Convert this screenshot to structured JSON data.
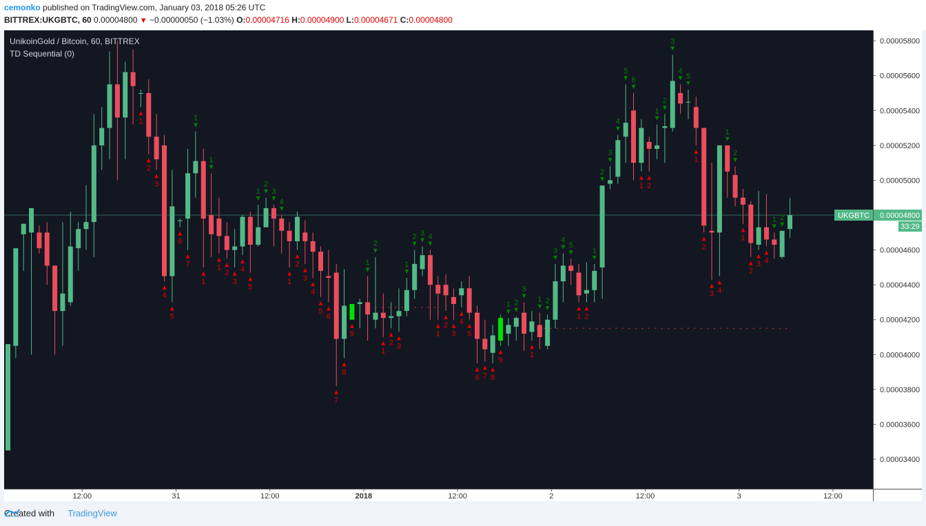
{
  "header": {
    "user": "cemonko",
    "published_text": "published on TradingView.com, January 03, 2018 05:26 UTC",
    "symbol_line": "BITTREX:UKGBTC, 60",
    "last_price": "0.00004800",
    "change": "−0.00000050 (−1.03%)",
    "o_label": "O:",
    "o_value": "0.00004716",
    "h_label": "H:",
    "h_value": "0.00004900",
    "l_label": "L:",
    "l_value": "0.00004671",
    "c_label": "C:",
    "c_value": "0.00004800"
  },
  "footer": {
    "created_with": "Created with",
    "brand": "TradingView"
  },
  "colors": {
    "background": "#131722",
    "up": "#53b987",
    "down": "#eb4d5c",
    "green_label": "#008000",
    "red_label": "#e00000",
    "highlight_up": "#00e000"
  },
  "chart_data": {
    "type": "candlestick",
    "title": "UnikoinGold / Bitcoin, 60, BITTREX",
    "indicator": "TD Sequential (0)",
    "symbol_tag": "UKGBTC",
    "price_tag": "0.00004800",
    "countdown_tag": "33:29",
    "ylim": [
      3.23e-05,
      5.86e-05
    ],
    "y_ticks": [
      "0.00005800",
      "0.00005600",
      "0.00005400",
      "0.00005200",
      "0.00005000",
      "0.00004800",
      "0.00004600",
      "0.00004400",
      "0.00004200",
      "0.00004000",
      "0.00003800",
      "0.00003600",
      "0.00003400"
    ],
    "x_ticks": [
      {
        "label": "12:00",
        "idx": 9.5
      },
      {
        "label": "31",
        "idx": 21.5
      },
      {
        "label": "12:00",
        "idx": 33.5
      },
      {
        "label": "2018",
        "idx": 45.5
      },
      {
        "label": "12:00",
        "idx": 57.5
      },
      {
        "label": "2",
        "idx": 69.5
      },
      {
        "label": "12:00",
        "idx": 81.5
      },
      {
        "label": "3",
        "idx": 93.5
      },
      {
        "label": "12:00",
        "idx": 105.5
      }
    ],
    "candles": [
      [
        3.45,
        4.06,
        4.06,
        3.45
      ],
      [
        4.05,
        4.61,
        4.61,
        3.98
      ],
      [
        4.69,
        4.75,
        4.75,
        4.48
      ],
      [
        4.7,
        4.84,
        4.84,
        4.0
      ],
      [
        4.7,
        4.61,
        4.74,
        4.58
      ],
      [
        4.7,
        4.51,
        4.76,
        4.4
      ],
      [
        4.51,
        4.25,
        4.51,
        4.0
      ],
      [
        4.25,
        4.35,
        4.76,
        4.05
      ],
      [
        4.3,
        4.62,
        4.82,
        4.28
      ],
      [
        4.61,
        4.72,
        4.76,
        4.48
      ],
      [
        4.72,
        4.76,
        4.97,
        4.6
      ],
      [
        4.76,
        5.2,
        5.38,
        4.56
      ],
      [
        5.2,
        5.3,
        5.42,
        5.06
      ],
      [
        5.3,
        5.55,
        5.74,
        5.12
      ],
      [
        5.55,
        5.36,
        5.8,
        5.0
      ],
      [
        5.36,
        5.62,
        5.68,
        5.12
      ],
      [
        5.62,
        5.54,
        5.75,
        5.32
      ],
      [
        5.5,
        5.5,
        5.52,
        5.42
      ],
      [
        5.5,
        5.25,
        5.58,
        5.15
      ],
      [
        5.25,
        5.12,
        5.38,
        5.06
      ],
      [
        5.2,
        4.45,
        5.26,
        4.42
      ],
      [
        4.45,
        4.85,
        5.06,
        4.3
      ],
      [
        4.77,
        4.77,
        4.78,
        4.73
      ],
      [
        4.78,
        5.04,
        5.18,
        4.6
      ],
      [
        5.04,
        5.11,
        5.28,
        4.9
      ],
      [
        5.11,
        4.78,
        5.18,
        4.5
      ],
      [
        4.8,
        4.69,
        5.04,
        4.56
      ],
      [
        4.78,
        4.68,
        4.9,
        4.58
      ],
      [
        4.68,
        4.6,
        4.76,
        4.55
      ],
      [
        4.6,
        4.62,
        4.72,
        4.5
      ],
      [
        4.62,
        4.79,
        4.8,
        4.57
      ],
      [
        4.79,
        4.63,
        4.82,
        4.47
      ],
      [
        4.63,
        4.73,
        4.86,
        4.62
      ],
      [
        4.73,
        4.84,
        4.9,
        4.74
      ],
      [
        4.84,
        4.78,
        4.86,
        4.62
      ],
      [
        4.78,
        4.71,
        4.8,
        4.58
      ],
      [
        4.71,
        4.65,
        4.76,
        4.5
      ],
      [
        4.65,
        4.79,
        4.82,
        4.6
      ],
      [
        4.7,
        4.65,
        4.77,
        4.52
      ],
      [
        4.65,
        4.59,
        4.7,
        4.44
      ],
      [
        4.59,
        4.48,
        4.62,
        4.33
      ],
      [
        4.45,
        4.44,
        4.6,
        4.3
      ],
      [
        4.47,
        4.09,
        4.52,
        3.82
      ],
      [
        4.09,
        4.28,
        4.49,
        3.98
      ],
      [
        4.2,
        4.29,
        4.29,
        4.2
      ],
      [
        4.29,
        4.3,
        4.32,
        4.15
      ],
      [
        4.3,
        4.23,
        4.45,
        4.08
      ],
      [
        4.2,
        4.24,
        4.56,
        4.15
      ],
      [
        4.24,
        4.21,
        4.35,
        4.1
      ],
      [
        4.21,
        4.22,
        4.3,
        4.15
      ],
      [
        4.22,
        4.25,
        4.38,
        4.13
      ],
      [
        4.25,
        4.37,
        4.44,
        4.22
      ],
      [
        4.37,
        4.52,
        4.6,
        4.32
      ],
      [
        4.49,
        4.57,
        4.62,
        4.45
      ],
      [
        4.57,
        4.4,
        4.6,
        4.2
      ],
      [
        4.4,
        4.35,
        4.45,
        4.2
      ],
      [
        4.4,
        4.34,
        4.46,
        4.25
      ],
      [
        4.33,
        4.29,
        4.38,
        4.2
      ],
      [
        4.34,
        4.38,
        4.42,
        4.27
      ],
      [
        4.38,
        4.24,
        4.45,
        4.2
      ],
      [
        4.24,
        4.09,
        4.28,
        3.95
      ],
      [
        4.09,
        4.03,
        4.2,
        3.96
      ],
      [
        4.01,
        4.11,
        4.17,
        3.95
      ],
      [
        4.08,
        4.21,
        4.23,
        4.05
      ],
      [
        4.12,
        4.17,
        4.21,
        4.05
      ],
      [
        4.16,
        4.21,
        4.22,
        4.08
      ],
      [
        4.24,
        4.12,
        4.3,
        4.02
      ],
      [
        4.13,
        4.19,
        4.25,
        4.08
      ],
      [
        4.17,
        4.1,
        4.24,
        4.03
      ],
      [
        4.05,
        4.2,
        4.23,
        4.03
      ],
      [
        4.2,
        4.42,
        4.52,
        4.15
      ],
      [
        4.42,
        4.51,
        4.58,
        4.3
      ],
      [
        4.51,
        4.48,
        4.55,
        4.4
      ],
      [
        4.47,
        4.34,
        4.52,
        4.3
      ],
      [
        4.35,
        4.37,
        4.53,
        4.3
      ],
      [
        4.37,
        4.48,
        4.52,
        4.3
      ],
      [
        4.5,
        4.97,
        4.97,
        4.32
      ],
      [
        4.98,
        5.0,
        5.08,
        4.95
      ],
      [
        5.02,
        5.23,
        5.26,
        4.98
      ],
      [
        5.25,
        5.33,
        5.55,
        5.1
      ],
      [
        5.4,
        5.1,
        5.5,
        5.0
      ],
      [
        5.1,
        5.3,
        5.35,
        5.05
      ],
      [
        5.22,
        5.18,
        5.25,
        5.05
      ],
      [
        5.18,
        5.2,
        5.32,
        5.12
      ],
      [
        5.3,
        5.31,
        5.38,
        5.1
      ],
      [
        5.3,
        5.57,
        5.72,
        5.28
      ],
      [
        5.5,
        5.44,
        5.55,
        5.38
      ],
      [
        5.45,
        5.45,
        5.52,
        5.35
      ],
      [
        5.42,
        5.3,
        5.48,
        5.2
      ],
      [
        5.3,
        4.74,
        5.3,
        4.7
      ],
      [
        4.71,
        4.7,
        5.1,
        4.43
      ],
      [
        4.7,
        5.2,
        5.2,
        4.45
      ],
      [
        5.2,
        5.05,
        5.2,
        4.9
      ],
      [
        5.03,
        4.9,
        5.08,
        4.85
      ],
      [
        4.9,
        4.86,
        4.95,
        4.75
      ],
      [
        4.86,
        4.64,
        4.88,
        4.56
      ],
      [
        4.63,
        4.73,
        4.94,
        4.6
      ],
      [
        4.73,
        4.66,
        4.92,
        4.62
      ],
      [
        4.66,
        4.63,
        4.7,
        4.55
      ],
      [
        4.56,
        4.71,
        4.71,
        4.55
      ],
      [
        4.72,
        4.8,
        4.9,
        4.67
      ]
    ],
    "setup_counts": [
      {
        "idx": 17,
        "label": "1",
        "side": "below",
        "color": "red"
      },
      {
        "idx": 18,
        "label": "2",
        "side": "below",
        "color": "red"
      },
      {
        "idx": 19,
        "label": "3",
        "side": "below",
        "color": "red"
      },
      {
        "idx": 20,
        "label": "4",
        "side": "below",
        "color": "red"
      },
      {
        "idx": 21,
        "label": "5",
        "side": "below",
        "color": "red"
      },
      {
        "idx": 22,
        "label": "6",
        "side": "below",
        "color": "red"
      },
      {
        "idx": 23,
        "label": "7",
        "side": "below",
        "color": "red"
      },
      {
        "idx": 24,
        "label": "1",
        "side": "above",
        "color": "green"
      },
      {
        "idx": 25,
        "label": "1",
        "side": "below",
        "color": "red"
      },
      {
        "idx": 26,
        "label": "1",
        "side": "above",
        "color": "green"
      },
      {
        "idx": 27,
        "label": "1",
        "side": "below",
        "color": "red"
      },
      {
        "idx": 28,
        "label": "2",
        "side": "below",
        "color": "red"
      },
      {
        "idx": 29,
        "label": "3",
        "side": "below",
        "color": "red"
      },
      {
        "idx": 30,
        "label": "4",
        "side": "below",
        "color": "red"
      },
      {
        "idx": 31,
        "label": "5",
        "side": "below",
        "color": "red"
      },
      {
        "idx": 32,
        "label": "1",
        "side": "above",
        "color": "green"
      },
      {
        "idx": 33,
        "label": "2",
        "side": "above",
        "color": "green"
      },
      {
        "idx": 34,
        "label": "3",
        "side": "above",
        "color": "green"
      },
      {
        "idx": 35,
        "label": "4",
        "side": "above",
        "color": "green"
      },
      {
        "idx": 36,
        "label": "1",
        "side": "below",
        "color": "red"
      },
      {
        "idx": 37,
        "label": "2",
        "side": "below",
        "color": "red"
      },
      {
        "idx": 38,
        "label": "3",
        "side": "below",
        "color": "red"
      },
      {
        "idx": 39,
        "label": "4",
        "side": "below",
        "color": "red"
      },
      {
        "idx": 40,
        "label": "5",
        "side": "below",
        "color": "red"
      },
      {
        "idx": 41,
        "label": "6",
        "side": "below",
        "color": "red"
      },
      {
        "idx": 42,
        "label": "7",
        "side": "below",
        "color": "red"
      },
      {
        "idx": 43,
        "label": "8",
        "side": "below",
        "color": "red"
      },
      {
        "idx": 44,
        "label": "9",
        "side": "below",
        "color": "red"
      },
      {
        "idx": 46,
        "label": "1",
        "side": "above",
        "color": "green"
      },
      {
        "idx": 47,
        "label": "2",
        "side": "above",
        "color": "green"
      },
      {
        "idx": 48,
        "label": "1",
        "side": "below",
        "color": "red"
      },
      {
        "idx": 49,
        "label": "2",
        "side": "below",
        "color": "red"
      },
      {
        "idx": 50,
        "label": "3",
        "side": "below",
        "color": "red"
      },
      {
        "idx": 51,
        "label": "1",
        "side": "above",
        "color": "green"
      },
      {
        "idx": 52,
        "label": "2",
        "side": "above",
        "color": "green"
      },
      {
        "idx": 53,
        "label": "3",
        "side": "above",
        "color": "green"
      },
      {
        "idx": 54,
        "label": "4",
        "side": "above",
        "color": "green"
      },
      {
        "idx": 55,
        "label": "1",
        "side": "below",
        "color": "red"
      },
      {
        "idx": 56,
        "label": "2",
        "side": "below",
        "color": "red"
      },
      {
        "idx": 57,
        "label": "3",
        "side": "below",
        "color": "red"
      },
      {
        "idx": 58,
        "label": "4",
        "side": "below",
        "color": "red"
      },
      {
        "idx": 59,
        "label": "5",
        "side": "below",
        "color": "red"
      },
      {
        "idx": 60,
        "label": "6",
        "side": "below",
        "color": "red"
      },
      {
        "idx": 61,
        "label": "7",
        "side": "below",
        "color": "red"
      },
      {
        "idx": 62,
        "label": "8",
        "side": "below",
        "color": "red"
      },
      {
        "idx": 63,
        "label": "9",
        "side": "below",
        "color": "red"
      },
      {
        "idx": 64,
        "label": "1",
        "side": "above",
        "color": "green"
      },
      {
        "idx": 65,
        "label": "2",
        "side": "above",
        "color": "green"
      },
      {
        "idx": 66,
        "label": "3",
        "side": "above",
        "color": "green"
      },
      {
        "idx": 67,
        "label": "1",
        "side": "below",
        "color": "red"
      },
      {
        "idx": 68,
        "label": "1",
        "side": "above",
        "color": "green"
      },
      {
        "idx": 69,
        "label": "2",
        "side": "above",
        "color": "green"
      },
      {
        "idx": 70,
        "label": "3",
        "side": "above",
        "color": "green"
      },
      {
        "idx": 71,
        "label": "4",
        "side": "above",
        "color": "green"
      },
      {
        "idx": 72,
        "label": "5",
        "side": "above",
        "color": "green"
      },
      {
        "idx": 73,
        "label": "1",
        "side": "below",
        "color": "red"
      },
      {
        "idx": 74,
        "label": "2",
        "side": "below",
        "color": "red"
      },
      {
        "idx": 75,
        "label": "1",
        "side": "above",
        "color": "green"
      },
      {
        "idx": 76,
        "label": "2",
        "side": "above",
        "color": "green"
      },
      {
        "idx": 77,
        "label": "3",
        "side": "above",
        "color": "green"
      },
      {
        "idx": 78,
        "label": "4",
        "side": "above",
        "color": "green"
      },
      {
        "idx": 79,
        "label": "5",
        "side": "above",
        "color": "green"
      },
      {
        "idx": 80,
        "label": "6",
        "side": "above",
        "color": "green"
      },
      {
        "idx": 81,
        "label": "1",
        "side": "below",
        "color": "red"
      },
      {
        "idx": 82,
        "label": "2",
        "side": "below",
        "color": "red"
      },
      {
        "idx": 83,
        "label": "1",
        "side": "above",
        "color": "green"
      },
      {
        "idx": 84,
        "label": "2",
        "side": "above",
        "color": "green"
      },
      {
        "idx": 85,
        "label": "3",
        "side": "above",
        "color": "green"
      },
      {
        "idx": 86,
        "label": "4",
        "side": "above",
        "color": "green"
      },
      {
        "idx": 87,
        "label": "5",
        "side": "above",
        "color": "green"
      },
      {
        "idx": 88,
        "label": "1",
        "side": "below",
        "color": "red"
      },
      {
        "idx": 89,
        "label": "2",
        "side": "below",
        "color": "red"
      },
      {
        "idx": 90,
        "label": "3",
        "side": "below",
        "color": "red"
      },
      {
        "idx": 91,
        "label": "4",
        "side": "below",
        "color": "red"
      },
      {
        "idx": 92,
        "label": "1",
        "side": "above",
        "color": "green"
      },
      {
        "idx": 93,
        "label": "2",
        "side": "above",
        "color": "green"
      },
      {
        "idx": 94,
        "label": "1",
        "side": "below",
        "color": "red"
      },
      {
        "idx": 95,
        "label": "2",
        "side": "below",
        "color": "red"
      },
      {
        "idx": 96,
        "label": "3",
        "side": "below",
        "color": "red"
      },
      {
        "idx": 97,
        "label": "4",
        "side": "below",
        "color": "red"
      },
      {
        "idx": 98,
        "label": "1",
        "side": "above",
        "color": "green"
      },
      {
        "idx": 99,
        "label": "2",
        "side": "above",
        "color": "green"
      }
    ],
    "highlighted_candles": [
      44,
      63
    ],
    "support_lines": [
      {
        "price": 4.27,
        "from": 47,
        "to": 55,
        "color": "red"
      },
      {
        "price": 4.15,
        "from": 66,
        "to": 100,
        "color": "red"
      }
    ],
    "price_scale": "values x 0.00001"
  }
}
